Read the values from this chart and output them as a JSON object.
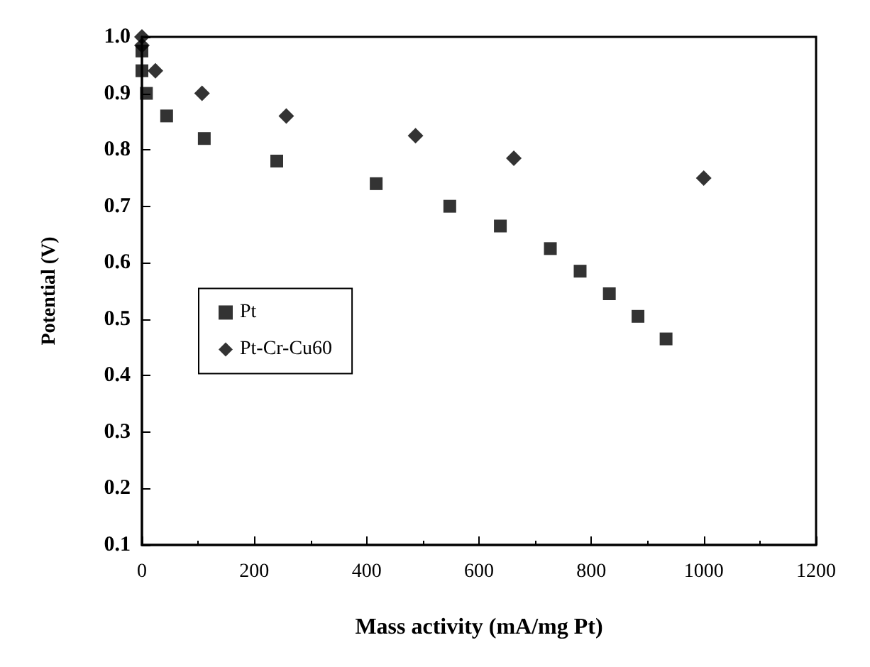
{
  "chart_data": {
    "type": "scatter",
    "xlabel": "Mass activity (mA/mg Pt)",
    "ylabel": "Potential (V)",
    "xlim": [
      0,
      1200
    ],
    "xticks": [
      0,
      200,
      400,
      600,
      800,
      1000,
      1200
    ],
    "ylim": [
      0.1,
      1.0
    ],
    "yticks": [
      0.1,
      0.2,
      0.3,
      0.4,
      0.5,
      0.6,
      0.7,
      0.8,
      0.9,
      {
        "value": 1.0,
        "label": "1.0"
      }
    ],
    "grid": false,
    "legend": "left",
    "series": [
      {
        "name": "Pt",
        "color": "#000000",
        "marker": "square",
        "x": [
          0,
          0,
          8,
          44,
          111,
          240,
          417,
          548,
          638,
          727,
          780,
          832,
          883,
          933
        ],
        "values": [
          0.975,
          0.94,
          0.9,
          0.86,
          0.82,
          0.78,
          0.74,
          0.7,
          0.665,
          0.625,
          0.585,
          0.545,
          0.505,
          0.465
        ]
      },
      {
        "name": "Pt-Cr-Cu60",
        "color": "#000000",
        "marker": "diamond",
        "x": [
          0,
          0,
          24,
          107,
          257,
          487,
          662,
          1000
        ],
        "values": [
          1.0,
          0.985,
          0.94,
          0.9,
          0.86,
          0.825,
          0.785,
          0.75
        ]
      }
    ]
  }
}
